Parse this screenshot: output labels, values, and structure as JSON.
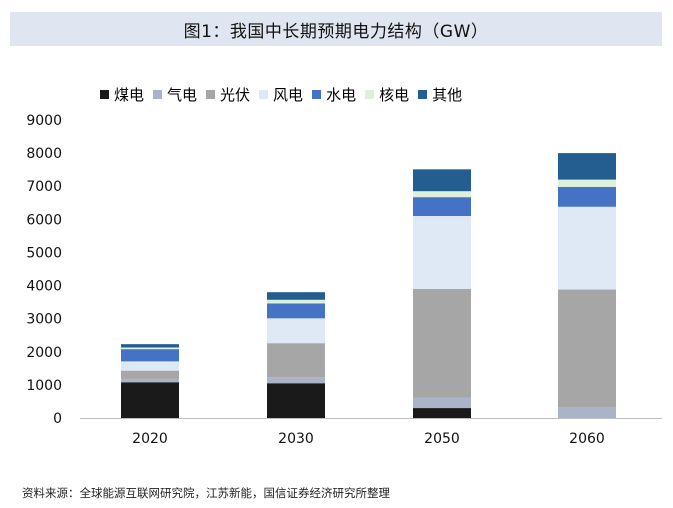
{
  "title": "图1：我国中长期预期电力结构（GW）",
  "source": "资料来源：全球能源互联网研究院，江苏新能，国信证券经济研究所整理",
  "chart_data": {
    "type": "bar",
    "stacked": true,
    "title": "图1：我国中长期预期电力结构（GW）",
    "xlabel": "",
    "ylabel": "",
    "ylim": [
      0,
      9000
    ],
    "yticks": [
      "0",
      "1000",
      "2000",
      "3000",
      "4000",
      "5000",
      "6000",
      "7000",
      "8000",
      "9000"
    ],
    "categories": [
      "2020",
      "2030",
      "2050",
      "2060"
    ],
    "legend_position": "top",
    "grid": false,
    "series": [
      {
        "name": "煤电",
        "color": "#1a1a1a",
        "values": [
          1080,
          1050,
          300,
          0
        ]
      },
      {
        "name": "气电",
        "color": "#a9b4c8",
        "values": [
          100,
          180,
          320,
          330
        ]
      },
      {
        "name": "光伏",
        "color": "#a6a6a6",
        "values": [
          250,
          1030,
          3280,
          3550
        ]
      },
      {
        "name": "风电",
        "color": "#dfe9f5",
        "values": [
          280,
          750,
          2200,
          2500
        ]
      },
      {
        "name": "水电",
        "color": "#4472c4",
        "values": [
          370,
          450,
          570,
          600
        ]
      },
      {
        "name": "核电",
        "color": "#dcf0dc",
        "values": [
          50,
          110,
          180,
          220
        ]
      },
      {
        "name": "其他",
        "color": "#245d8f",
        "values": [
          100,
          230,
          660,
          800
        ]
      }
    ]
  }
}
